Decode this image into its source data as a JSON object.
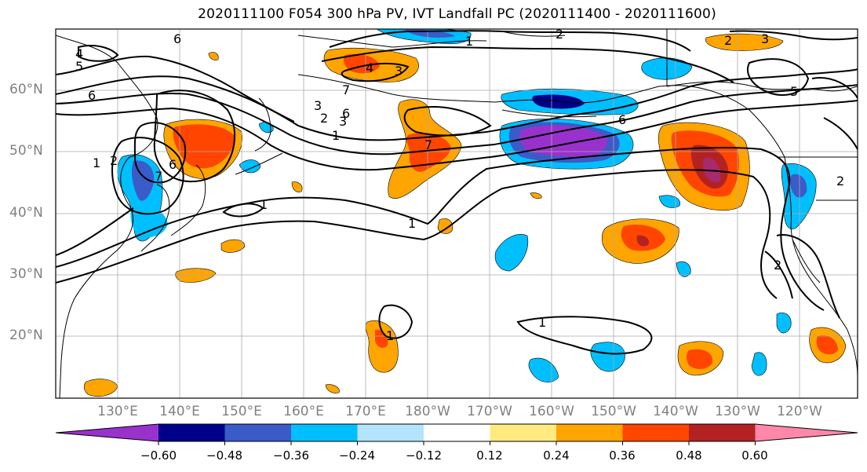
{
  "title": "2020111100 F054 300 hPa PV, IVT Landfall PC (2020111400 - 2020111600)",
  "lat_labels": [
    "60°N",
    "50°N",
    "40°N",
    "30°N",
    "20°N"
  ],
  "lon_labels": [
    "130°E",
    "140°E",
    "150°E",
    "160°E",
    "170°E",
    "180°W",
    "170°W",
    "160°W",
    "150°W",
    "140°W",
    "130°W",
    "120°W"
  ],
  "colorbar": {
    "levels": [
      -0.72,
      -0.6,
      -0.48,
      -0.36,
      -0.24,
      -0.12,
      0.12,
      0.24,
      0.36,
      0.48,
      0.6,
      0.72
    ],
    "tick_labels": [
      "−0.60",
      "−0.48",
      "−0.36",
      "−0.24",
      "−0.12",
      "0.12",
      "0.24",
      "0.36",
      "0.48",
      "0.60"
    ],
    "colors": [
      "#9932cc",
      "#00008b",
      "#3a5bc8",
      "#00bfff",
      "#b4e4fb",
      "#ffffff",
      "#ffea80",
      "#ffa500",
      "#ff4500",
      "#b22222",
      "#ff88aa"
    ],
    "extend": "both"
  },
  "contour_labels": [
    "1",
    "2",
    "3",
    "4",
    "5",
    "6",
    "7"
  ],
  "colors": {
    "contour": "#000000",
    "grid": "#aaaaaa",
    "coast": "#000000",
    "axis_label": "#808080"
  }
}
